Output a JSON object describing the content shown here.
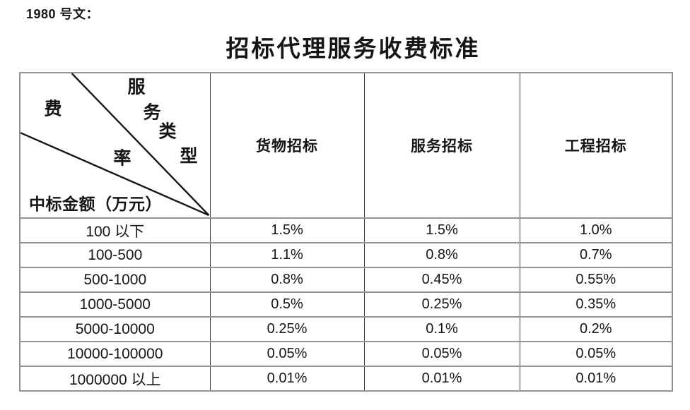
{
  "doc": {
    "ref": "1980 号文：",
    "title": "招标代理服务收费标准"
  },
  "table": {
    "corner": {
      "fee_chars": [
        "费",
        "率"
      ],
      "service_type_chars": [
        "服",
        "务",
        "类",
        "型"
      ],
      "column_axis_label": "费率",
      "column_group_label": "服务类型",
      "row_axis_label": "中标金额（万元）"
    },
    "columns": [
      "货物招标",
      "服务招标",
      "工程招标"
    ],
    "rows": [
      {
        "label": "100 以下",
        "values": [
          "1.5%",
          "1.5%",
          "1.0%"
        ]
      },
      {
        "label": "100-500",
        "values": [
          "1.1%",
          "0.8%",
          "0.7%"
        ]
      },
      {
        "label": "500-1000",
        "values": [
          "0.8%",
          "0.45%",
          "0.55%"
        ]
      },
      {
        "label": "1000-5000",
        "values": [
          "0.5%",
          "0.25%",
          "0.35%"
        ]
      },
      {
        "label": "5000-10000",
        "values": [
          "0.25%",
          "0.1%",
          "0.2%"
        ]
      },
      {
        "label": "10000-100000",
        "values": [
          "0.05%",
          "0.05%",
          "0.05%"
        ]
      },
      {
        "label": "1000000 以上",
        "values": [
          "0.01%",
          "0.01%",
          "0.01%"
        ]
      }
    ]
  },
  "colors": {
    "border_outer": "#8f8f8f",
    "border_horizontal": "#949494",
    "border_vertical": "#3e3e3e",
    "text": "#161616",
    "background": "#ffffff"
  }
}
